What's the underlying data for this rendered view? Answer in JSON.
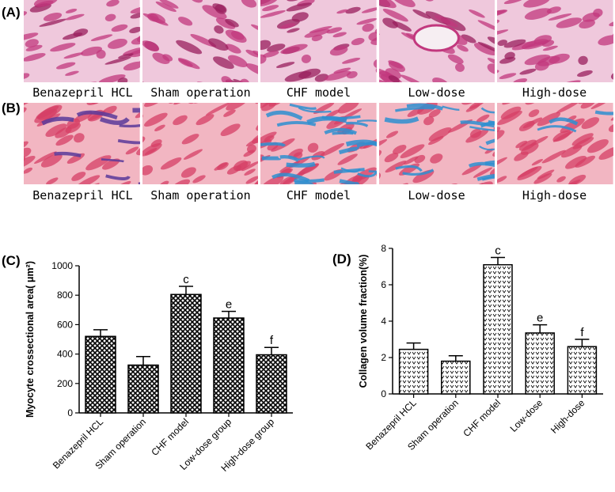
{
  "panels": {
    "A": {
      "letter": "(A)",
      "stain": "he",
      "captions": [
        "Benazepril HCL",
        "Sham operation",
        "CHF model",
        "Low-dose",
        "High-dose"
      ]
    },
    "B": {
      "letter": "(B)",
      "stain": "masson",
      "captions": [
        "Benazepril HCL",
        "Sham operation",
        "CHF model",
        "Low-dose",
        "High-dose"
      ]
    },
    "C": {
      "letter": "(C)"
    },
    "D": {
      "letter": "(D)"
    }
  },
  "colors": {
    "he_bg": "#efc8dc",
    "he_fiber": "#c2387e",
    "he_dark": "#9a1f5e",
    "masson_bg": "#f2b6c2",
    "masson_fiber": "#d63f66",
    "masson_collagen": "#2e8fd0",
    "masson_violet": "#5a3a9a"
  },
  "chart_data": [
    {
      "type": "bar",
      "panel": "C",
      "ylabel": "Myocyte crossectional area( μm²)",
      "categories": [
        "Benazepril HCL",
        "Sham operation",
        "CHF model",
        "Low-dose group",
        "High-dose group"
      ],
      "values": [
        520,
        325,
        805,
        645,
        395
      ],
      "errors": [
        45,
        58,
        55,
        45,
        50
      ],
      "annotations": [
        "",
        "",
        "c",
        "e",
        "f"
      ],
      "ylim": [
        0,
        1000
      ],
      "yticks": [
        0,
        200,
        400,
        600,
        800,
        1000
      ],
      "pattern": "crosshatch"
    },
    {
      "type": "bar",
      "panel": "D",
      "ylabel": "Collagen volume fraction(%)",
      "categories": [
        "Benazepril HCL",
        "Sham operation",
        "CHF model",
        "Low-dose",
        "High-dose"
      ],
      "values": [
        2.45,
        1.8,
        7.1,
        3.35,
        2.6
      ],
      "errors": [
        0.35,
        0.3,
        0.4,
        0.45,
        0.4
      ],
      "annotations": [
        "",
        "",
        "c",
        "e",
        "f"
      ],
      "ylim": [
        0,
        8
      ],
      "yticks": [
        0,
        2,
        4,
        6,
        8
      ],
      "pattern": "dots"
    }
  ]
}
